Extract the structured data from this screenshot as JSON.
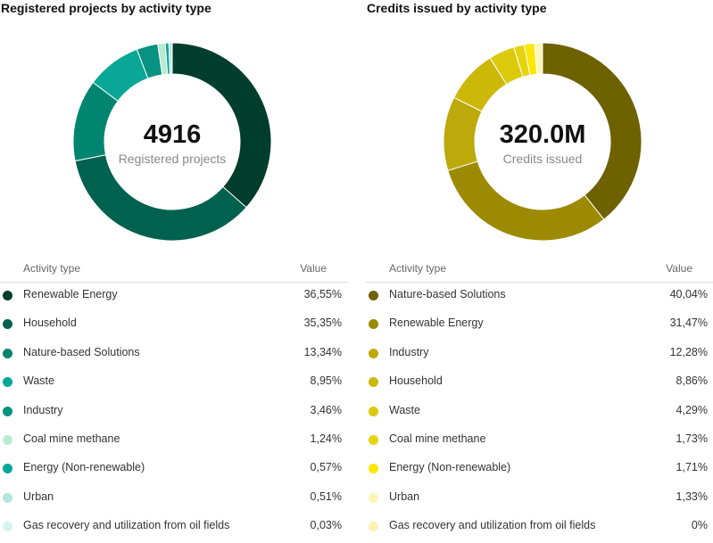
{
  "chart_data": [
    {
      "type": "pie",
      "title": "Registered projects by activity type",
      "center_value": "4916",
      "center_label": "Registered projects",
      "table_header": {
        "type": "Activity type",
        "value": "Value"
      },
      "categories": [
        "Renewable Energy",
        "Household",
        "Nature-based Solutions",
        "Waste",
        "Industry",
        "Coal mine methane",
        "Energy (Non-renewable)",
        "Urban",
        "Gas recovery and utilization from oil fields"
      ],
      "values": [
        36.55,
        35.35,
        13.34,
        8.95,
        3.46,
        1.24,
        0.57,
        0.51,
        0.03
      ],
      "value_labels": [
        "36,55%",
        "35,35%",
        "13,34%",
        "8,95%",
        "3,46%",
        "1,24%",
        "0,57%",
        "0,51%",
        "0,03%"
      ],
      "colors": [
        "#003d2d",
        "#00614e",
        "#008571",
        "#0ba796",
        "#08927f",
        "#b8ead2",
        "#00a896",
        "#b3e6de",
        "#d4f2ee"
      ]
    },
    {
      "type": "pie",
      "title": "Credits issued by activity type",
      "center_value": "320.0M",
      "center_label": "Credits issued",
      "table_header": {
        "type": "Activity type",
        "value": "Value"
      },
      "categories": [
        "Nature-based Solutions",
        "Renewable Energy",
        "Industry",
        "Household",
        "Waste",
        "Coal mine methane",
        "Energy (Non-renewable)",
        "Urban",
        "Gas recovery and utilization from oil fields"
      ],
      "values": [
        40.04,
        31.47,
        12.28,
        8.86,
        4.29,
        1.73,
        1.71,
        1.33,
        0
      ],
      "value_labels": [
        "40,04%",
        "31,47%",
        "12,28%",
        "8,86%",
        "4,29%",
        "1,73%",
        "1,71%",
        "1,33%",
        "0%"
      ],
      "colors": [
        "#6e6100",
        "#9c8a02",
        "#bca90a",
        "#cdb708",
        "#dcc90c",
        "#e5d30f",
        "#fbe605",
        "#fdf5b8",
        "#fdf2b2"
      ]
    }
  ]
}
